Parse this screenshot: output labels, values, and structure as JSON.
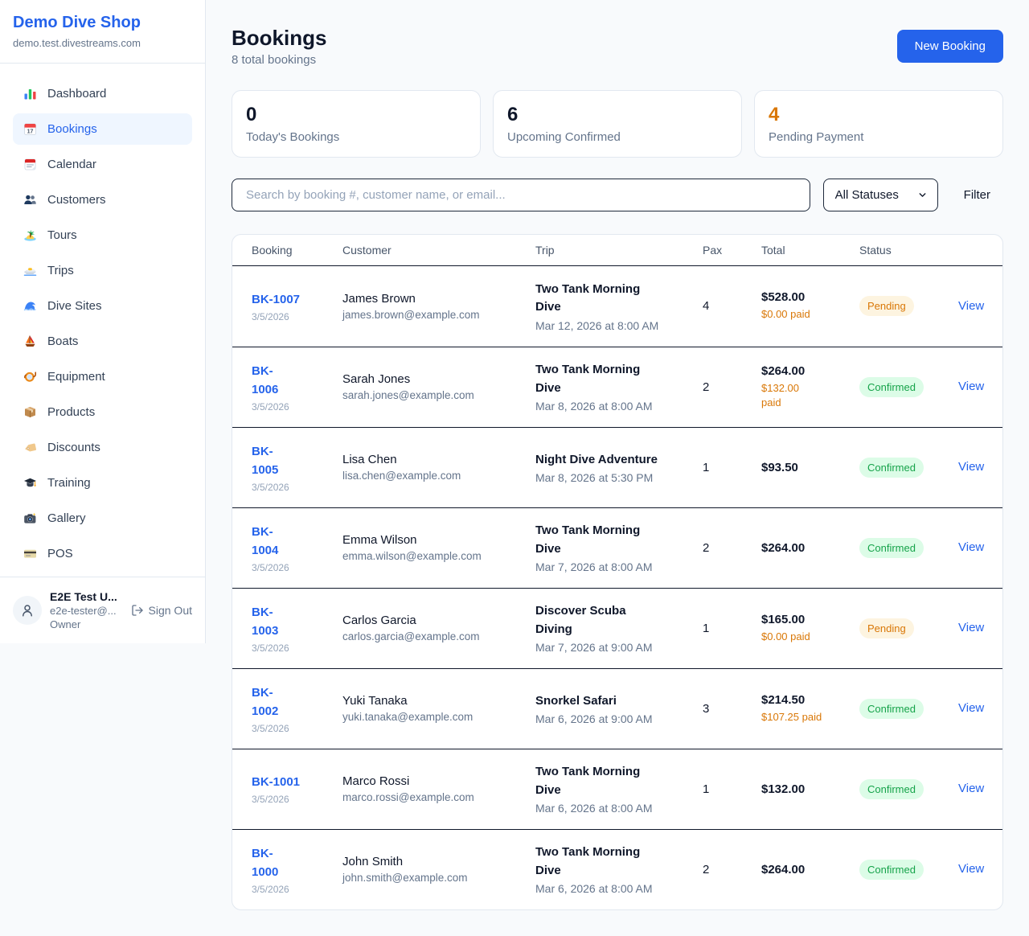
{
  "sidebar": {
    "brand": "Demo Dive Shop",
    "domain": "demo.test.divestreams.com",
    "items": [
      {
        "icon": "bar-chart-icon",
        "label": "Dashboard",
        "active": false
      },
      {
        "icon": "calendar-17-icon",
        "label": "Bookings",
        "active": true
      },
      {
        "icon": "tear-off-calendar-icon",
        "label": "Calendar",
        "active": false
      },
      {
        "icon": "people-icon",
        "label": "Customers",
        "active": false
      },
      {
        "icon": "island-icon",
        "label": "Tours",
        "active": false
      },
      {
        "icon": "speedboat-icon",
        "label": "Trips",
        "active": false
      },
      {
        "icon": "wave-icon",
        "label": "Dive Sites",
        "active": false
      },
      {
        "icon": "sailboat-icon",
        "label": "Boats",
        "active": false
      },
      {
        "icon": "diving-mask-icon",
        "label": "Equipment",
        "active": false
      },
      {
        "icon": "package-icon",
        "label": "Products",
        "active": false
      },
      {
        "icon": "tag-icon",
        "label": "Discounts",
        "active": false
      },
      {
        "icon": "graduation-cap-icon",
        "label": "Training",
        "active": false
      },
      {
        "icon": "camera-icon",
        "label": "Gallery",
        "active": false
      },
      {
        "icon": "credit-card-icon",
        "label": "POS",
        "active": false
      }
    ],
    "user": {
      "name": "E2E Test U...",
      "email": "e2e-tester@...",
      "role": "Owner",
      "sign_out": "Sign Out"
    }
  },
  "header": {
    "title": "Bookings",
    "subtitle": "8 total bookings",
    "new_booking": "New Booking"
  },
  "stats": [
    {
      "value": "0",
      "label": "Today's Bookings",
      "color": "dark"
    },
    {
      "value": "6",
      "label": "Upcoming Confirmed",
      "color": "dark"
    },
    {
      "value": "4",
      "label": "Pending Payment",
      "color": "orange"
    }
  ],
  "filters": {
    "search_placeholder": "Search by booking #, customer name, or email...",
    "status_select": "All Statuses",
    "filter_label": "Filter"
  },
  "table": {
    "columns": [
      "Booking",
      "Customer",
      "Trip",
      "Pax",
      "Total",
      "Status"
    ],
    "rows": [
      {
        "booking_id": "BK-1007",
        "id_wrap": false,
        "date": "3/5/2026",
        "customer": "James Brown",
        "email": "james.brown@example.com",
        "trip": "Two Tank Morning Dive",
        "trip_wrap": true,
        "trip_date": "Mar 12, 2026 at 8:00 AM",
        "pax": "4",
        "total": "$528.00",
        "paid": "$0.00 paid",
        "paid_wrap": false,
        "status": "Pending",
        "view": "View"
      },
      {
        "booking_id": "BK-1006",
        "id_wrap": true,
        "date": "3/5/2026",
        "customer": "Sarah Jones",
        "email": "sarah.jones@example.com",
        "trip": "Two Tank Morning Dive",
        "trip_wrap": true,
        "trip_date": "Mar 8, 2026 at 8:00 AM",
        "pax": "2",
        "total": "$264.00",
        "paid": "$132.00 paid",
        "paid_wrap": true,
        "status": "Confirmed",
        "view": "View"
      },
      {
        "booking_id": "BK-1005",
        "id_wrap": true,
        "date": "3/5/2026",
        "customer": "Lisa Chen",
        "email": "lisa.chen@example.com",
        "trip": "Night Dive Adventure",
        "trip_wrap": false,
        "trip_date": "Mar 8, 2026 at 5:30 PM",
        "pax": "1",
        "total": "$93.50",
        "paid": null,
        "paid_wrap": false,
        "status": "Confirmed",
        "view": "View"
      },
      {
        "booking_id": "BK-1004",
        "id_wrap": true,
        "date": "3/5/2026",
        "customer": "Emma Wilson",
        "email": "emma.wilson@example.com",
        "trip": "Two Tank Morning Dive",
        "trip_wrap": true,
        "trip_date": "Mar 7, 2026 at 8:00 AM",
        "pax": "2",
        "total": "$264.00",
        "paid": null,
        "paid_wrap": false,
        "status": "Confirmed",
        "view": "View"
      },
      {
        "booking_id": "BK-1003",
        "id_wrap": true,
        "date": "3/5/2026",
        "customer": "Carlos Garcia",
        "email": "carlos.garcia@example.com",
        "trip": "Discover Scuba Diving",
        "trip_wrap": true,
        "trip_date": "Mar 7, 2026 at 9:00 AM",
        "pax": "1",
        "total": "$165.00",
        "paid": "$0.00 paid",
        "paid_wrap": false,
        "status": "Pending",
        "view": "View"
      },
      {
        "booking_id": "BK-1002",
        "id_wrap": true,
        "date": "3/5/2026",
        "customer": "Yuki Tanaka",
        "email": "yuki.tanaka@example.com",
        "trip": "Snorkel Safari",
        "trip_wrap": false,
        "trip_date": "Mar 6, 2026 at 9:00 AM",
        "pax": "3",
        "total": "$214.50",
        "paid": "$107.25 paid",
        "paid_wrap": false,
        "status": "Confirmed",
        "view": "View"
      },
      {
        "booking_id": "BK-1001",
        "id_wrap": false,
        "date": "3/5/2026",
        "customer": "Marco Rossi",
        "email": "marco.rossi@example.com",
        "trip": "Two Tank Morning Dive",
        "trip_wrap": true,
        "trip_date": "Mar 6, 2026 at 8:00 AM",
        "pax": "1",
        "total": "$132.00",
        "paid": null,
        "paid_wrap": false,
        "status": "Confirmed",
        "view": "View"
      },
      {
        "booking_id": "BK-1000",
        "id_wrap": true,
        "date": "3/5/2026",
        "customer": "John Smith",
        "email": "john.smith@example.com",
        "trip": "Two Tank Morning Dive",
        "trip_wrap": true,
        "trip_date": "Mar 6, 2026 at 8:00 AM",
        "pax": "2",
        "total": "$264.00",
        "paid": null,
        "paid_wrap": false,
        "status": "Confirmed",
        "view": "View"
      }
    ]
  }
}
